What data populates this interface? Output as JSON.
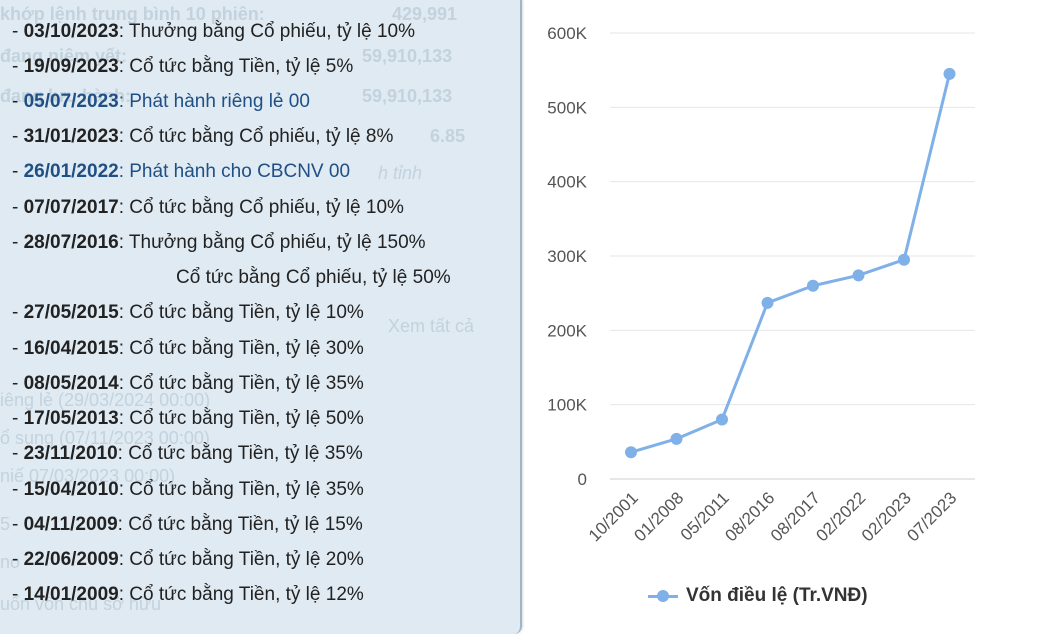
{
  "ghost_text": [
    {
      "text": "khớp lệnh trung bình 10 phiên:",
      "bold": true
    },
    {
      "text": "429,991",
      "bold": true
    },
    {
      "text": "đang niêm yết:",
      "bold": true
    },
    {
      "text": "59,910,133",
      "bold": true
    },
    {
      "text": "đang lưu hành:",
      "bold": true
    },
    {
      "text": "59,910,133",
      "bold": true
    },
    {
      "text": "6.85",
      "bold": true
    },
    {
      "text": "h tỉnh",
      "bold": false
    },
    {
      "text": "Xem tất cả",
      "bold": false
    },
    {
      "text": "iêng lẻ (29/03/2024 00:00)",
      "bold": false
    },
    {
      "text": "ổ sung (07/11/2023 00:00)",
      "bold": false
    },
    {
      "text": "niế  07/03/2023 00:00)",
      "bold": false
    },
    {
      "text": "5",
      "bold": false
    },
    {
      "text": "no",
      "bold": false
    },
    {
      "text": "uốn vốn chủ sở hữu",
      "bold": false
    }
  ],
  "events": [
    {
      "date": "03/10/2023",
      "text": ": Thưởng bằng Cổ phiếu, tỷ lệ 10%",
      "link": false
    },
    {
      "date": "19/09/2023",
      "text": ": Cổ tức bằng Tiền, tỷ lệ 5%",
      "link": false
    },
    {
      "date": "05/07/2023",
      "text": ": Phát hành riêng lẻ 00",
      "link": true
    },
    {
      "date": "31/01/2023",
      "text": ": Cổ tức bằng Cổ phiếu, tỷ lệ 8%",
      "link": false
    },
    {
      "date": "26/01/2022",
      "text": ": Phát hành cho CBCNV 00",
      "link": true
    },
    {
      "date": "07/07/2017",
      "text": ": Cổ tức bằng Cổ phiếu, tỷ lệ 10%",
      "link": false
    },
    {
      "date": "28/07/2016",
      "text": ": Thưởng bằng Cổ phiếu, tỷ lệ 150%",
      "link": false
    },
    {
      "date": "27/05/2015",
      "text": ": Cổ tức bằng Tiền, tỷ lệ 10%",
      "link": false
    },
    {
      "date": "16/04/2015",
      "text": ": Cổ tức bằng Tiền, tỷ lệ 30%",
      "link": false
    },
    {
      "date": "08/05/2014",
      "text": ": Cổ tức bằng Tiền, tỷ lệ 35%",
      "link": false
    },
    {
      "date": "17/05/2013",
      "text": ": Cổ tức bằng Tiền, tỷ lệ 50%",
      "link": false
    },
    {
      "date": "23/11/2010",
      "text": ": Cổ tức bằng Tiền, tỷ lệ 35%",
      "link": false
    },
    {
      "date": "15/04/2010",
      "text": ": Cổ tức bằng Tiền, tỷ lệ 35%",
      "link": false
    },
    {
      "date": "04/11/2009",
      "text": ": Cổ tức bằng Tiền, tỷ lệ 15%",
      "link": false
    },
    {
      "date": "22/06/2009",
      "text": ": Cổ tức bằng Tiền, tỷ lệ 20%",
      "link": false
    },
    {
      "date": "14/01/2009",
      "text": ": Cổ tức bằng Tiền, tỷ lệ 12%",
      "link": false
    }
  ],
  "event_continuation": "Cổ tức bằng Cổ phiếu, tỷ lệ 50%",
  "event_prefix": "- ",
  "chart_data": {
    "type": "line",
    "categories": [
      "10/2001",
      "01/2008",
      "05/2011",
      "08/2016",
      "08/2017",
      "02/2022",
      "02/2023",
      "07/2023"
    ],
    "series": [
      {
        "name": "Vốn điều lệ (Tr.VNĐ)",
        "values": [
          36000,
          54000,
          80000,
          237000,
          260000,
          274000,
          295000,
          545000
        ]
      }
    ],
    "y_ticks": [
      "0",
      "100K",
      "200K",
      "300K",
      "400K",
      "500K",
      "600K"
    ],
    "ylim": [
      0,
      600000
    ],
    "grid": true,
    "legend_position": "bottom",
    "color": "#7fb0e8"
  },
  "legend_label": "Vốn điều lệ (Tr.VNĐ)"
}
